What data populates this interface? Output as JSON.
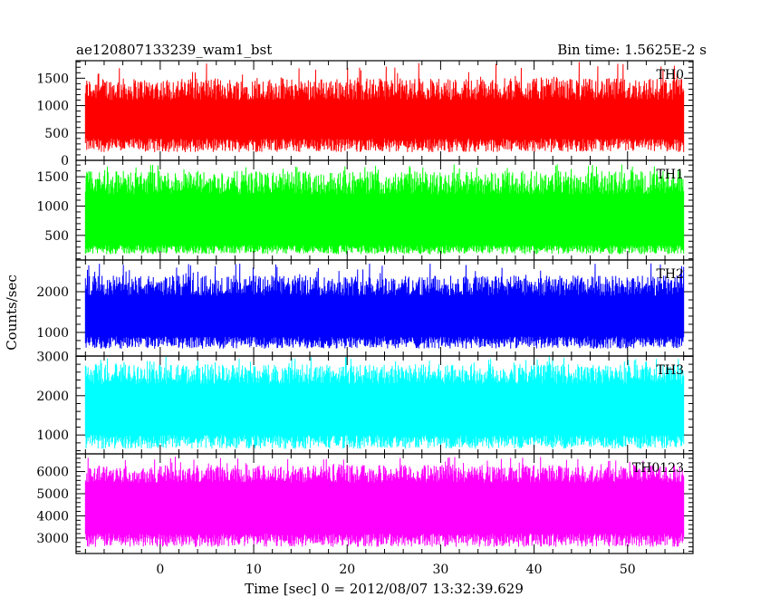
{
  "header": {
    "title": "ae120807133239_wam1_bst",
    "bin_time": "Bin time: 1.5625E-2 s"
  },
  "chart_data": {
    "type": "line",
    "xlabel": "Time [sec] 0 = 2012/08/07 13:32:39.629",
    "ylabel": "Counts/sec",
    "xlim": [
      -9,
      57
    ],
    "x_range": [
      -8,
      56
    ],
    "x_ticks": [
      0,
      10,
      20,
      30,
      40,
      50
    ],
    "panels": [
      {
        "name": "TH0",
        "color": "#ff0000",
        "ylim": [
          0,
          1820
        ],
        "yticks": [
          0,
          500,
          1000,
          1500
        ],
        "low_range": [
          150,
          400
        ],
        "high_range": [
          1100,
          1500
        ],
        "peak": 1800
      },
      {
        "name": "TH1",
        "color": "#00ff00",
        "ylim": [
          80,
          1780
        ],
        "yticks": [
          500,
          1000,
          1500
        ],
        "low_range": [
          180,
          330
        ],
        "high_range": [
          1200,
          1600
        ],
        "peak": 1720
      },
      {
        "name": "TH2",
        "color": "#0000ff",
        "ylim": [
          420,
          2780
        ],
        "yticks": [
          1000,
          2000
        ],
        "low_range": [
          600,
          900
        ],
        "high_range": [
          1900,
          2400
        ],
        "peak": 2700
      },
      {
        "name": "TH3",
        "color": "#00ffff",
        "ylim": [
          520,
          3010
        ],
        "yticks": [
          1000,
          2000,
          3000
        ],
        "low_range": [
          650,
          1000
        ],
        "high_range": [
          2300,
          2800
        ],
        "peak": 3000
      },
      {
        "name": "TH0123",
        "color": "#ff00ff",
        "ylim": [
          2300,
          6800
        ],
        "yticks": [
          3000,
          4000,
          5000,
          6000
        ],
        "low_range": [
          2600,
          3200
        ],
        "high_range": [
          5500,
          6300
        ],
        "peak": 6700
      }
    ]
  }
}
